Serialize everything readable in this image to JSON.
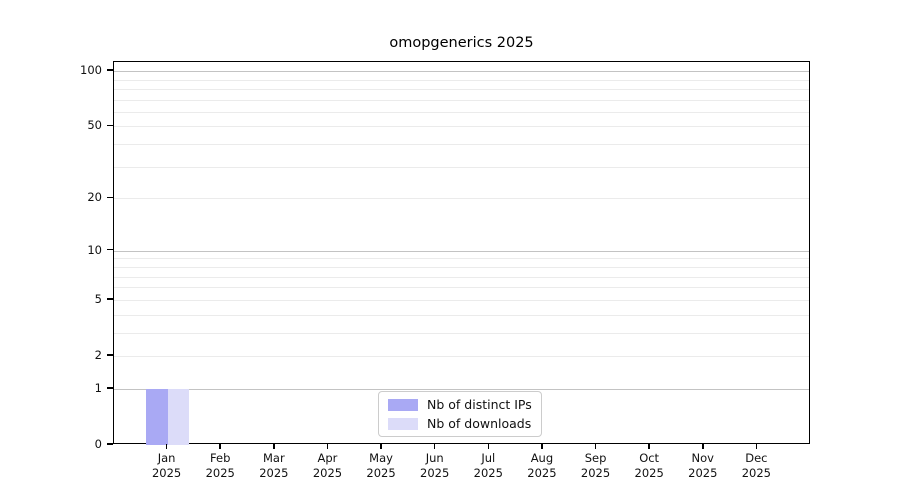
{
  "title": "omopgenerics 2025",
  "chart_data": {
    "type": "bar",
    "title": "omopgenerics 2025",
    "categories": [
      [
        "Jan",
        "2025"
      ],
      [
        "Feb",
        "2025"
      ],
      [
        "Mar",
        "2025"
      ],
      [
        "Apr",
        "2025"
      ],
      [
        "May",
        "2025"
      ],
      [
        "Jun",
        "2025"
      ],
      [
        "Jul",
        "2025"
      ],
      [
        "Aug",
        "2025"
      ],
      [
        "Sep",
        "2025"
      ],
      [
        "Oct",
        "2025"
      ],
      [
        "Nov",
        "2025"
      ],
      [
        "Dec",
        "2025"
      ]
    ],
    "series": [
      {
        "name": "Nb of distinct IPs",
        "color": "#a9a9f4",
        "values": [
          1,
          0,
          0,
          0,
          0,
          0,
          0,
          0,
          0,
          0,
          0,
          0
        ]
      },
      {
        "name": "Nb of downloads",
        "color": "#dcdcf9",
        "values": [
          1,
          0,
          0,
          0,
          0,
          0,
          0,
          0,
          0,
          0,
          0,
          0
        ]
      }
    ],
    "xlabel": "",
    "ylabel": "",
    "yscale": "log1p",
    "ylim": [
      0,
      112
    ],
    "yticks": [
      0,
      1,
      2,
      5,
      10,
      20,
      50,
      100
    ],
    "major_gridline_values": [
      1,
      10,
      100
    ],
    "minor_gridline_values": [
      2,
      3,
      4,
      5,
      6,
      7,
      8,
      9,
      20,
      30,
      40,
      50,
      60,
      70,
      80,
      90
    ],
    "grid": true,
    "legend_position": "bottom-center-inside",
    "colors": {
      "grid_major": "#c3c3c3",
      "grid_minor": "#ebebeb",
      "spine": "#000000",
      "text": "#111111",
      "background": "#ffffff"
    }
  }
}
